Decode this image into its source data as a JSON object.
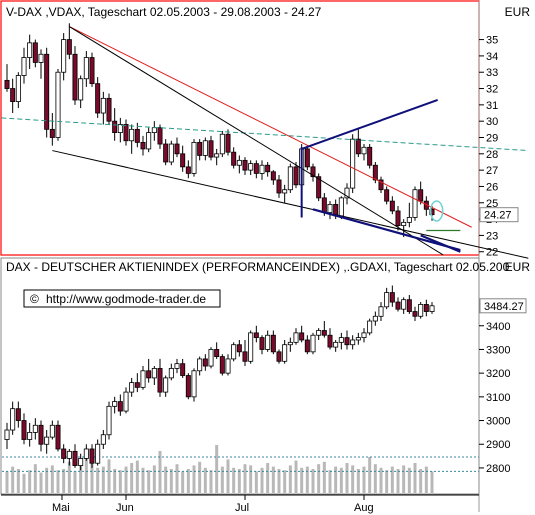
{
  "colors": {
    "up": "#ffffff",
    "down": "#7a0a2c",
    "wick": "#000000",
    "frame_top": "#ff0000",
    "frame_bottom": "#888888",
    "red_line": "#e02020",
    "black_line": "#000000",
    "navy_line": "#10107a",
    "teal_line": "#2a9a8a",
    "ellipse": "#6fd3d3",
    "green_mark": "#2a7a2a",
    "volume": "#b8b8b8",
    "dotted_teal": "#3a8aa0"
  },
  "chart_data": [
    {
      "type": "candlestick",
      "title": "V-DAX ,VDAX, Tageschart 02.05.2003 - 29.08.2003 - 24.27",
      "currency": "EUR",
      "last_value_label": "24.27",
      "last_value": 24.27,
      "ylim": [
        21.8,
        36.2
      ],
      "yticks": [
        22,
        23,
        24,
        25,
        26,
        27,
        28,
        29,
        30,
        31,
        32,
        33,
        34,
        35
      ],
      "ohlc": [
        [
          32.5,
          33.5,
          31.8,
          32.0
        ],
        [
          32.0,
          32.6,
          30.5,
          31.2
        ],
        [
          31.2,
          33.0,
          30.8,
          32.8
        ],
        [
          32.8,
          34.5,
          32.3,
          33.9
        ],
        [
          33.9,
          35.3,
          33.2,
          34.8
        ],
        [
          34.8,
          35.0,
          33.3,
          33.6
        ],
        [
          33.6,
          34.4,
          32.6,
          34.1
        ],
        [
          34.1,
          34.5,
          29.0,
          29.5
        ],
        [
          29.5,
          30.5,
          28.5,
          29.0
        ],
        [
          29.0,
          33.2,
          28.8,
          33.0
        ],
        [
          33.0,
          35.4,
          32.5,
          35.0
        ],
        [
          35.0,
          36.0,
          33.8,
          34.1
        ],
        [
          34.1,
          34.6,
          31.0,
          31.3
        ],
        [
          31.3,
          32.8,
          30.8,
          32.6
        ],
        [
          32.6,
          34.3,
          32.1,
          33.9
        ],
        [
          33.9,
          34.2,
          32.1,
          32.3
        ],
        [
          32.3,
          32.7,
          30.2,
          30.5
        ],
        [
          30.5,
          31.8,
          29.8,
          31.4
        ],
        [
          31.4,
          31.7,
          29.8,
          30.0
        ],
        [
          30.0,
          30.8,
          28.8,
          29.3
        ],
        [
          29.3,
          30.2,
          28.7,
          29.8
        ],
        [
          29.8,
          30.1,
          28.5,
          28.8
        ],
        [
          28.8,
          29.8,
          28.0,
          29.5
        ],
        [
          29.5,
          29.9,
          28.4,
          28.7
        ],
        [
          28.7,
          29.1,
          27.9,
          28.3
        ],
        [
          28.3,
          29.6,
          28.1,
          29.3
        ],
        [
          29.3,
          30.0,
          28.8,
          29.6
        ],
        [
          29.6,
          29.8,
          28.3,
          28.6
        ],
        [
          28.6,
          28.9,
          27.3,
          27.5
        ],
        [
          27.5,
          28.8,
          27.3,
          28.6
        ],
        [
          28.6,
          29.0,
          27.8,
          28.0
        ],
        [
          28.0,
          28.5,
          26.9,
          27.2
        ],
        [
          27.2,
          27.6,
          26.5,
          26.8
        ],
        [
          26.8,
          28.9,
          26.6,
          28.7
        ],
        [
          28.7,
          28.9,
          27.6,
          27.9
        ],
        [
          27.9,
          29.0,
          27.6,
          28.8
        ],
        [
          28.8,
          29.1,
          27.6,
          27.8
        ],
        [
          27.8,
          28.3,
          27.3,
          28.0
        ],
        [
          28.0,
          29.4,
          27.8,
          29.2
        ],
        [
          29.2,
          29.5,
          27.9,
          28.1
        ],
        [
          28.1,
          28.4,
          27.1,
          27.3
        ],
        [
          27.3,
          27.9,
          26.8,
          27.6
        ],
        [
          27.6,
          27.8,
          26.7,
          27.0
        ],
        [
          27.0,
          27.6,
          26.7,
          27.4
        ],
        [
          27.4,
          27.6,
          26.5,
          26.8
        ],
        [
          26.8,
          27.6,
          26.4,
          27.3
        ],
        [
          27.3,
          27.5,
          26.6,
          26.9
        ],
        [
          26.9,
          27.0,
          26.1,
          26.4
        ],
        [
          26.4,
          26.7,
          25.3,
          25.6
        ],
        [
          25.6,
          26.1,
          25.0,
          25.8
        ],
        [
          25.8,
          27.4,
          25.6,
          27.2
        ],
        [
          27.2,
          27.5,
          25.9,
          26.1
        ],
        [
          26.1,
          28.6,
          25.9,
          28.3
        ],
        [
          28.3,
          28.5,
          27.0,
          27.2
        ],
        [
          27.2,
          27.4,
          26.3,
          26.6
        ],
        [
          26.6,
          26.8,
          25.1,
          25.3
        ],
        [
          25.3,
          25.6,
          24.2,
          24.4
        ],
        [
          24.4,
          25.1,
          24.0,
          24.9
        ],
        [
          24.9,
          25.2,
          24.0,
          24.2
        ],
        [
          24.2,
          25.4,
          24.0,
          25.3
        ],
        [
          25.3,
          26.2,
          24.9,
          25.9
        ],
        [
          25.9,
          29.2,
          25.6,
          28.9
        ],
        [
          28.9,
          29.5,
          27.8,
          28.0
        ],
        [
          28.0,
          28.6,
          27.6,
          28.4
        ],
        [
          28.4,
          28.6,
          27.1,
          27.3
        ],
        [
          27.3,
          27.5,
          26.2,
          26.4
        ],
        [
          26.4,
          26.6,
          25.6,
          25.8
        ],
        [
          25.8,
          26.0,
          24.9,
          25.1
        ],
        [
          25.1,
          25.4,
          24.3,
          24.5
        ],
        [
          24.5,
          24.8,
          23.3,
          23.6
        ],
        [
          23.6,
          24.0,
          22.9,
          23.8
        ],
        [
          23.8,
          25.0,
          23.5,
          24.1
        ],
        [
          24.1,
          26.0,
          23.9,
          25.8
        ],
        [
          25.8,
          26.3,
          24.9,
          25.1
        ],
        [
          25.1,
          25.4,
          24.2,
          24.6
        ],
        [
          24.6,
          24.8,
          23.9,
          24.27
        ]
      ]
    },
    {
      "type": "candlestick",
      "title": "DAX - DEUTSCHER AKTIENINDEX (PERFORMANCEINDEX) ,.GDAXI, Tageschart 02.05.200",
      "currency": "EUR",
      "copyright": "©",
      "source": "http://www.godmode-trader.de",
      "last_value_label": "3484.27",
      "last_value": 3484.27,
      "ylim": [
        2690,
        3610
      ],
      "yticks": [
        2800,
        2900,
        3000,
        3100,
        3200,
        3300,
        3400
      ],
      "xlabels": [
        "Mai",
        "Jun",
        "Jul",
        "Aug"
      ],
      "ohlc": [
        [
          2920,
          2990,
          2880,
          2960
        ],
        [
          2960,
          3080,
          2940,
          3050
        ],
        [
          3050,
          3080,
          2970,
          3000
        ],
        [
          3000,
          3030,
          2900,
          2920
        ],
        [
          2920,
          2990,
          2890,
          2950
        ],
        [
          2950,
          3010,
          2920,
          2980
        ],
        [
          2980,
          3000,
          2870,
          2900
        ],
        [
          2900,
          2960,
          2860,
          2930
        ],
        [
          2930,
          3000,
          2920,
          2980
        ],
        [
          2980,
          3000,
          2870,
          2880
        ],
        [
          2880,
          2900,
          2820,
          2840
        ],
        [
          2840,
          2880,
          2810,
          2870
        ],
        [
          2870,
          2900,
          2800,
          2810
        ],
        [
          2810,
          2860,
          2790,
          2840
        ],
        [
          2840,
          2900,
          2830,
          2880
        ],
        [
          2880,
          2900,
          2800,
          2820
        ],
        [
          2820,
          2920,
          2810,
          2900
        ],
        [
          2900,
          2960,
          2880,
          2940
        ],
        [
          2940,
          3080,
          2920,
          3060
        ],
        [
          3060,
          3100,
          3030,
          3080
        ],
        [
          3080,
          3110,
          3020,
          3040
        ],
        [
          3040,
          3140,
          3030,
          3120
        ],
        [
          3120,
          3180,
          3100,
          3160
        ],
        [
          3160,
          3200,
          3120,
          3140
        ],
        [
          3140,
          3230,
          3130,
          3210
        ],
        [
          3210,
          3260,
          3160,
          3180
        ],
        [
          3180,
          3230,
          3150,
          3220
        ],
        [
          3220,
          3260,
          3100,
          3120
        ],
        [
          3120,
          3190,
          3100,
          3180
        ],
        [
          3180,
          3240,
          3170,
          3220
        ],
        [
          3220,
          3260,
          3200,
          3240
        ],
        [
          3240,
          3260,
          3180,
          3190
        ],
        [
          3190,
          3200,
          3090,
          3100
        ],
        [
          3100,
          3220,
          3080,
          3210
        ],
        [
          3210,
          3270,
          3190,
          3260
        ],
        [
          3260,
          3280,
          3210,
          3230
        ],
        [
          3230,
          3310,
          3220,
          3300
        ],
        [
          3300,
          3330,
          3260,
          3270
        ],
        [
          3270,
          3280,
          3190,
          3200
        ],
        [
          3200,
          3280,
          3190,
          3260
        ],
        [
          3260,
          3330,
          3250,
          3320
        ],
        [
          3320,
          3340,
          3270,
          3290
        ],
        [
          3290,
          3340,
          3230,
          3250
        ],
        [
          3250,
          3380,
          3240,
          3370
        ],
        [
          3370,
          3400,
          3330,
          3350
        ],
        [
          3350,
          3360,
          3280,
          3300
        ],
        [
          3300,
          3380,
          3290,
          3360
        ],
        [
          3360,
          3380,
          3280,
          3290
        ],
        [
          3290,
          3300,
          3240,
          3250
        ],
        [
          3250,
          3340,
          3240,
          3320
        ],
        [
          3320,
          3350,
          3290,
          3330
        ],
        [
          3330,
          3390,
          3320,
          3370
        ],
        [
          3370,
          3400,
          3330,
          3340
        ],
        [
          3340,
          3360,
          3280,
          3290
        ],
        [
          3290,
          3370,
          3280,
          3360
        ],
        [
          3360,
          3390,
          3340,
          3380
        ],
        [
          3380,
          3420,
          3350,
          3360
        ],
        [
          3360,
          3390,
          3300,
          3310
        ],
        [
          3310,
          3340,
          3290,
          3330
        ],
        [
          3330,
          3370,
          3300,
          3350
        ],
        [
          3350,
          3380,
          3300,
          3320
        ],
        [
          3320,
          3360,
          3300,
          3340
        ],
        [
          3340,
          3370,
          3320,
          3350
        ],
        [
          3350,
          3390,
          3330,
          3370
        ],
        [
          3370,
          3430,
          3360,
          3420
        ],
        [
          3420,
          3460,
          3400,
          3440
        ],
        [
          3440,
          3500,
          3420,
          3480
        ],
        [
          3480,
          3560,
          3470,
          3540
        ],
        [
          3540,
          3570,
          3480,
          3500
        ],
        [
          3500,
          3520,
          3460,
          3470
        ],
        [
          3470,
          3520,
          3450,
          3510
        ],
        [
          3510,
          3530,
          3450,
          3460
        ],
        [
          3460,
          3480,
          3420,
          3440
        ],
        [
          3440,
          3500,
          3430,
          3490
        ],
        [
          3490,
          3510,
          3440,
          3460
        ],
        [
          3460,
          3500,
          3450,
          3484.27
        ]
      ],
      "volume": [
        18,
        22,
        20,
        16,
        19,
        24,
        17,
        21,
        23,
        19,
        20,
        26,
        18,
        24,
        30,
        33,
        21,
        22,
        28,
        20,
        19,
        22,
        25,
        27,
        21,
        19,
        23,
        35,
        22,
        20,
        24,
        18,
        20,
        23,
        26,
        21,
        19,
        40,
        22,
        28,
        21,
        20,
        24,
        23,
        18,
        21,
        25,
        22,
        20,
        19,
        23,
        27,
        21,
        22,
        20,
        24,
        26,
        19,
        22,
        21,
        25,
        23,
        20,
        22,
        30,
        24,
        21,
        19,
        22,
        20,
        23,
        21,
        25,
        20,
        22,
        18
      ],
      "volume_ref_lines": [
        0.45,
        0.75
      ]
    }
  ]
}
